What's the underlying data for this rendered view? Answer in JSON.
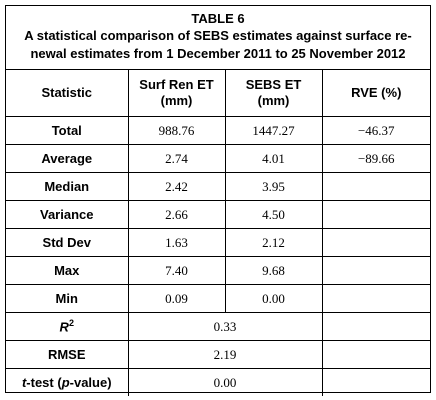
{
  "table": {
    "label": "TABLE 6",
    "title": "A statistical comparison of SEBS estimates against surface re-newal estimates from 1 December 2011 to 25 November 2012",
    "headers": {
      "statistic": "Statistic",
      "surf_ren_et": "Surf Ren ET",
      "surf_ren_et_unit": "(mm)",
      "sebs_et": "SEBS ET",
      "sebs_et_unit": "(mm)",
      "rve": "RVE (%)"
    },
    "rows": [
      {
        "statistic": "Total",
        "surf_ren_et": "988.76",
        "sebs_et": "1447.27",
        "rve": "−46.37"
      },
      {
        "statistic": "Average",
        "surf_ren_et": "2.74",
        "sebs_et": "4.01",
        "rve": "−89.66"
      },
      {
        "statistic": "Median",
        "surf_ren_et": "2.42",
        "sebs_et": "3.95",
        "rve": ""
      },
      {
        "statistic": "Variance",
        "surf_ren_et": "2.66",
        "sebs_et": "4.50",
        "rve": ""
      },
      {
        "statistic": "Std Dev",
        "surf_ren_et": "1.63",
        "sebs_et": "2.12",
        "rve": ""
      },
      {
        "statistic": "Max",
        "surf_ren_et": "7.40",
        "sebs_et": "9.68",
        "rve": ""
      },
      {
        "statistic": "Min",
        "surf_ren_et": "0.09",
        "sebs_et": "0.00",
        "rve": ""
      }
    ],
    "merged_rows": [
      {
        "statistic_main": "R",
        "statistic_sup": "2",
        "value": "0.33"
      },
      {
        "statistic_main": "RMSE",
        "value": "2.19"
      },
      {
        "statistic_italic": "t",
        "statistic_mid": "-test (",
        "statistic_italic2": "p",
        "statistic_end": "-value)",
        "value": "0.00"
      }
    ]
  }
}
